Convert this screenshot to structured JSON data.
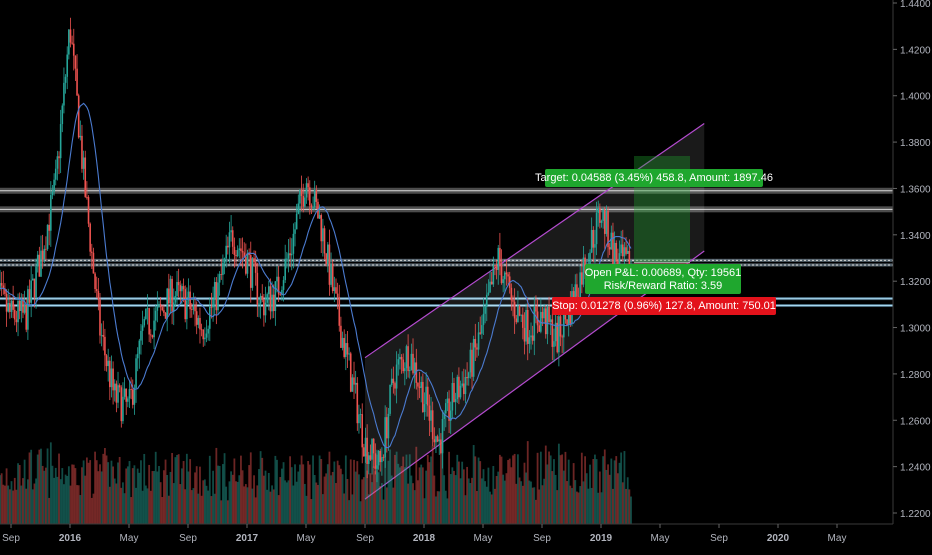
{
  "chart_data": {
    "type": "candlestick",
    "title": "",
    "xlabel": "",
    "ylabel": "",
    "ylim": [
      1.216,
      1.444
    ],
    "y_ticks": [
      "1.2200",
      "1.2400",
      "1.2600",
      "1.2800",
      "1.3000",
      "1.3200",
      "1.3400",
      "1.3600",
      "1.3800",
      "1.4000",
      "1.4200",
      "1.4400"
    ],
    "x_ticks": [
      "Sep",
      "2016",
      "May",
      "Sep",
      "2017",
      "May",
      "Sep",
      "2018",
      "May",
      "Sep",
      "2019",
      "May",
      "Sep",
      "2020",
      "May"
    ],
    "price_series": {
      "name": "",
      "approx_path": [
        {
          "x": "2015-08",
          "y": 1.315
        },
        {
          "x": "2015-09",
          "y": 1.305
        },
        {
          "x": "2015-10",
          "y": 1.305
        },
        {
          "x": "2015-11",
          "y": 1.33
        },
        {
          "x": "2015-12",
          "y": 1.36
        },
        {
          "x": "2016-01",
          "y": 1.43
        },
        {
          "x": "2016-02",
          "y": 1.36
        },
        {
          "x": "2016-03",
          "y": 1.3
        },
        {
          "x": "2016-04",
          "y": 1.27
        },
        {
          "x": "2016-05",
          "y": 1.265
        },
        {
          "x": "2016-06",
          "y": 1.3
        },
        {
          "x": "2016-07",
          "y": 1.305
        },
        {
          "x": "2016-08",
          "y": 1.315
        },
        {
          "x": "2016-09",
          "y": 1.31
        },
        {
          "x": "2016-10",
          "y": 1.3
        },
        {
          "x": "2016-11",
          "y": 1.315
        },
        {
          "x": "2016-12",
          "y": 1.34
        },
        {
          "x": "2017-01",
          "y": 1.33
        },
        {
          "x": "2017-02",
          "y": 1.31
        },
        {
          "x": "2017-03",
          "y": 1.315
        },
        {
          "x": "2017-04",
          "y": 1.335
        },
        {
          "x": "2017-05",
          "y": 1.365
        },
        {
          "x": "2017-06",
          "y": 1.345
        },
        {
          "x": "2017-07",
          "y": 1.31
        },
        {
          "x": "2017-08",
          "y": 1.28
        },
        {
          "x": "2017-09",
          "y": 1.25
        },
        {
          "x": "2017-10",
          "y": 1.24
        },
        {
          "x": "2017-11",
          "y": 1.28
        },
        {
          "x": "2017-12",
          "y": 1.29
        },
        {
          "x": "2018-01",
          "y": 1.27
        },
        {
          "x": "2018-02",
          "y": 1.25
        },
        {
          "x": "2018-03",
          "y": 1.27
        },
        {
          "x": "2018-04",
          "y": 1.28
        },
        {
          "x": "2018-05",
          "y": 1.3
        },
        {
          "x": "2018-06",
          "y": 1.33
        },
        {
          "x": "2018-07",
          "y": 1.31
        },
        {
          "x": "2018-08",
          "y": 1.3
        },
        {
          "x": "2018-09",
          "y": 1.305
        },
        {
          "x": "2018-10",
          "y": 1.295
        },
        {
          "x": "2018-11",
          "y": 1.31
        },
        {
          "x": "2018-12",
          "y": 1.33
        },
        {
          "x": "2019-01",
          "y": 1.35
        },
        {
          "x": "2019-02",
          "y": 1.33
        },
        {
          "x": "2019-03",
          "y": 1.325
        }
      ]
    },
    "horizontal_levels": [
      1.359,
      1.351,
      1.329,
      1.327,
      1.3125,
      1.3095
    ],
    "channel": {
      "lower": [
        {
          "x": "2017-09",
          "y": 1.226
        },
        {
          "x": "2019-08",
          "y": 1.333
        }
      ],
      "upper": [
        {
          "x": "2017-09",
          "y": 1.287
        },
        {
          "x": "2019-08",
          "y": 1.388
        }
      ]
    },
    "position": {
      "target_label": "Target: 0.04588 (3.45%) 458.8, Amount: 1897.46",
      "open_label_line1": "Open P&L: 0.00689, Qty: 19561",
      "open_label_line2": "Risk/Reward Ratio: 3.59",
      "stop_label": "Stop: 0.01278 (0.96%) 127.8, Amount: 750.01",
      "target_price": 1.374,
      "entry_price": 1.328,
      "stop_price": 1.315
    },
    "colors": {
      "background": "#000000",
      "up_candle": "#26a69a",
      "down_candle": "#ef5350",
      "moving_average": "#4b7bd0",
      "channel": "#b44bcf",
      "target_label_bg": "#1fa72e",
      "stop_label_bg": "#e3121b",
      "axis_text": "#b2b5be"
    }
  }
}
